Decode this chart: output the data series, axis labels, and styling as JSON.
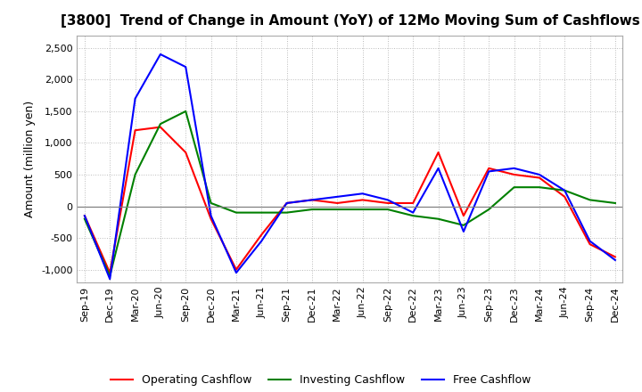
{
  "title": "[3800]  Trend of Change in Amount (YoY) of 12Mo Moving Sum of Cashflows",
  "ylabel": "Amount (million yen)",
  "ylim": [
    -1200,
    2700
  ],
  "yticks": [
    -1000,
    -500,
    0,
    500,
    1000,
    1500,
    2000,
    2500
  ],
  "x_labels": [
    "Sep-19",
    "Dec-19",
    "Mar-20",
    "Jun-20",
    "Sep-20",
    "Dec-20",
    "Mar-21",
    "Jun-21",
    "Sep-21",
    "Dec-21",
    "Mar-22",
    "Jun-22",
    "Sep-22",
    "Dec-22",
    "Mar-23",
    "Jun-23",
    "Sep-23",
    "Dec-23",
    "Mar-24",
    "Jun-24",
    "Sep-24",
    "Dec-24"
  ],
  "operating": [
    -150,
    -1050,
    1200,
    1250,
    850,
    -200,
    -1000,
    -450,
    50,
    100,
    50,
    100,
    50,
    50,
    850,
    -150,
    600,
    500,
    450,
    150,
    -600,
    -800
  ],
  "investing": [
    -200,
    -1100,
    500,
    1300,
    1500,
    50,
    -100,
    -100,
    -100,
    -50,
    -50,
    -50,
    -50,
    -150,
    -200,
    -300,
    -50,
    300,
    300,
    250,
    100,
    50
  ],
  "free": [
    -150,
    -1150,
    1700,
    2400,
    2200,
    -150,
    -1050,
    -550,
    50,
    100,
    150,
    200,
    100,
    -100,
    600,
    -400,
    550,
    600,
    500,
    250,
    -550,
    -850
  ],
  "op_color": "#ff0000",
  "inv_color": "#008000",
  "free_color": "#0000ff",
  "bg_color": "#ffffff",
  "grid_color": "#bbbbbb",
  "title_fontsize": 11,
  "axis_fontsize": 9,
  "tick_fontsize": 8,
  "legend_fontsize": 9,
  "linewidth": 1.5
}
